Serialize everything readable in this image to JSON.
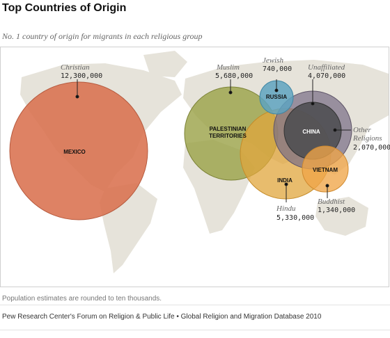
{
  "header": {
    "title": "Top Countries of Origin",
    "subtitle": "No. 1 country of origin for migrants in each religious group"
  },
  "groups": [
    {
      "key": "christian",
      "religion": "Christian",
      "country": "MEXICO",
      "migrants": "12,300,000",
      "color": "#d9714f"
    },
    {
      "key": "muslim",
      "religion": "Muslim",
      "country_line1": "PALESTINIAN",
      "country_line2": "TERRITORIES",
      "migrants": "5,680,000",
      "color": "#9aa146"
    },
    {
      "key": "jewish",
      "religion": "Jewish",
      "country": "RUSSIA",
      "migrants": "740,000",
      "color": "#5ea3c0"
    },
    {
      "key": "unaffiliated",
      "religion": "Unaffiliated",
      "country": "CHINA",
      "migrants": "4,070,000",
      "color": "#7a6f86"
    },
    {
      "key": "other",
      "religion_line1": "Other",
      "religion_line2": "Religions",
      "migrants": "2,070,000",
      "color": "#4f4f52"
    },
    {
      "key": "hindu",
      "religion": "Hindu",
      "country": "INDIA",
      "migrants": "5,330,000",
      "color": "#e0a63c"
    },
    {
      "key": "buddhist",
      "religion": "Buddhist",
      "country": "VIETNAM",
      "migrants": "1,340,000",
      "color": "#f0a548"
    }
  ],
  "footer": {
    "note": "Population estimates are rounded to ten thousands.",
    "source": "Pew Research Center's Forum on Religion & Public Life • Global Religion and Migration Database 2010"
  }
}
